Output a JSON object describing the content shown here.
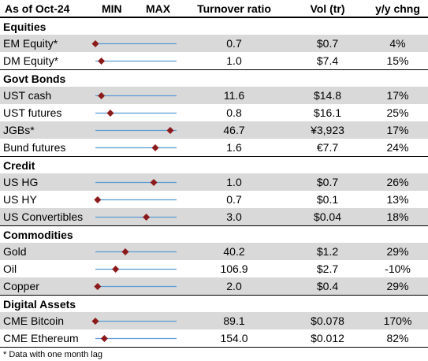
{
  "header": {
    "as_of": "As of Oct-24",
    "min": "MIN",
    "max": "MAX",
    "turnover": "Turnover ratio",
    "vol": "Vol (tr)",
    "yoy": "y/y chng"
  },
  "colors": {
    "line": "#5b9bd5",
    "marker": "#8b1a1a",
    "shade": "#d9d9d9"
  },
  "chart_data": {
    "type": "table",
    "range_marker_scale": "position between MIN and MAX (0 = MIN, 1 = MAX), estimated",
    "sections": [
      {
        "title": "Equities",
        "rows": [
          {
            "name": "EM Equity*",
            "turnover": "0.7",
            "vol": "$0.7",
            "yoy": "4%",
            "pos": 0.0,
            "shade": true
          },
          {
            "name": "DM Equity*",
            "turnover": "1.0",
            "vol": "$7.4",
            "yoy": "15%",
            "pos": 0.08,
            "shade": false
          }
        ]
      },
      {
        "title": "Govt Bonds",
        "rows": [
          {
            "name": "UST cash",
            "turnover": "11.6",
            "vol": "$14.8",
            "yoy": "17%",
            "pos": 0.08,
            "shade": true
          },
          {
            "name": "UST futures",
            "turnover": "0.8",
            "vol": "$16.1",
            "yoy": "25%",
            "pos": 0.2,
            "shade": false
          },
          {
            "name": "JGBs*",
            "turnover": "46.7",
            "vol": "¥3,923",
            "yoy": "17%",
            "pos": 1.0,
            "shade": true
          },
          {
            "name": "Bund futures",
            "turnover": "1.6",
            "vol": "€7.7",
            "yoy": "24%",
            "pos": 0.8,
            "shade": false
          }
        ]
      },
      {
        "title": "Credit",
        "rows": [
          {
            "name": "US HG",
            "turnover": "1.0",
            "vol": "$0.7",
            "yoy": "26%",
            "pos": 0.78,
            "shade": true
          },
          {
            "name": "US HY",
            "turnover": "0.7",
            "vol": "$0.1",
            "yoy": "13%",
            "pos": 0.03,
            "shade": false
          },
          {
            "name": "US Convertibles",
            "turnover": "3.0",
            "vol": "$0.04",
            "yoy": "18%",
            "pos": 0.68,
            "shade": true
          }
        ]
      },
      {
        "title": "Commodities",
        "rows": [
          {
            "name": "Gold",
            "turnover": "40.2",
            "vol": "$1.2",
            "yoy": "29%",
            "pos": 0.4,
            "shade": true
          },
          {
            "name": "Oil",
            "turnover": "106.9",
            "vol": "$2.7",
            "yoy": "-10%",
            "pos": 0.27,
            "shade": false
          },
          {
            "name": "Copper",
            "turnover": "2.0",
            "vol": "$0.4",
            "yoy": "29%",
            "pos": 0.03,
            "shade": true
          }
        ]
      },
      {
        "title": "Digital Assets",
        "rows": [
          {
            "name": "CME Bitcoin",
            "turnover": "89.1",
            "vol": "$0.078",
            "yoy": "170%",
            "pos": 0.0,
            "shade": true
          },
          {
            "name": "CME Ethereum",
            "turnover": "154.0",
            "vol": "$0.012",
            "yoy": "82%",
            "pos": 0.12,
            "shade": false
          }
        ]
      }
    ]
  },
  "footnote": "* Data with one month lag"
}
